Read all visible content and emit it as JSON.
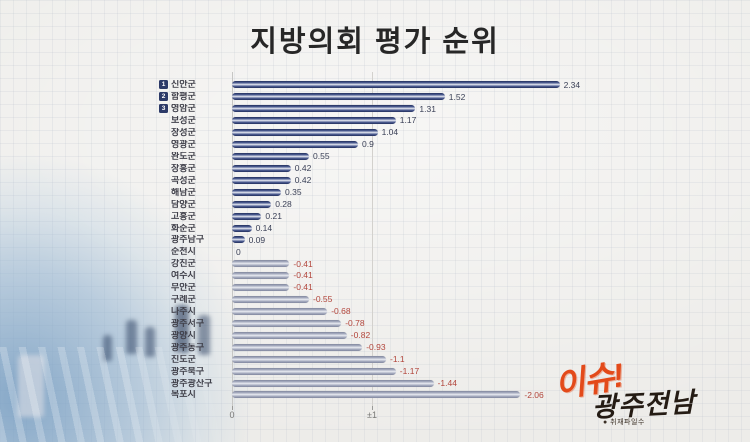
{
  "title": "지방의회 평가 순위",
  "chart_data": {
    "type": "bar",
    "orientation": "horizontal",
    "title": "지방의회 평가 순위",
    "categories": [
      "신안군",
      "함평군",
      "영암군",
      "보성군",
      "장성군",
      "영광군",
      "완도군",
      "장흥군",
      "곡성군",
      "해남군",
      "담양군",
      "고흥군",
      "화순군",
      "광주남구",
      "순천시",
      "강진군",
      "여수시",
      "무안군",
      "구례군",
      "나주시",
      "광주서구",
      "광양시",
      "광주동구",
      "진도군",
      "광주북구",
      "광주광산구",
      "목포시"
    ],
    "values": [
      2.34,
      1.52,
      1.31,
      1.17,
      1.04,
      0.9,
      0.55,
      0.42,
      0.42,
      0.35,
      0.28,
      0.21,
      0.14,
      0.09,
      0,
      -0.41,
      -0.41,
      -0.41,
      -0.55,
      -0.68,
      -0.78,
      -0.82,
      -0.93,
      -1.1,
      -1.17,
      -1.44,
      -2.06
    ],
    "value_labels": [
      "2.34",
      "1.52",
      "1.31",
      "1.17",
      "1.04",
      "0.9",
      "0.55",
      "0.42",
      "0.42",
      "0.35",
      "0.28",
      "0.21",
      "0.14",
      "0.09",
      "0",
      "-0.41",
      "-0.41",
      "-0.41",
      "-0.55",
      "-0.68",
      "-0.78",
      "-0.82",
      "-0.93",
      "-1.1",
      "-1.17",
      "-1.44",
      "-2.06"
    ],
    "ranks": [
      1,
      2,
      3
    ],
    "axis_ticks": [
      "0",
      "±1"
    ],
    "xlim": [
      0,
      2.5
    ],
    "grid": "vertical line at ±1",
    "legend": "none",
    "positive_bar_color": "#2c3a68",
    "negative_bar_color": "#9aa0b6",
    "positive_value_color": "#3b4157",
    "negative_value_color": "#b2453b"
  },
  "logo": {
    "issue": "이슈!",
    "region": "광주전남",
    "tagline": "● 취재파일수",
    "issue_color": "#e34a1a",
    "region_color": "#241b14"
  }
}
